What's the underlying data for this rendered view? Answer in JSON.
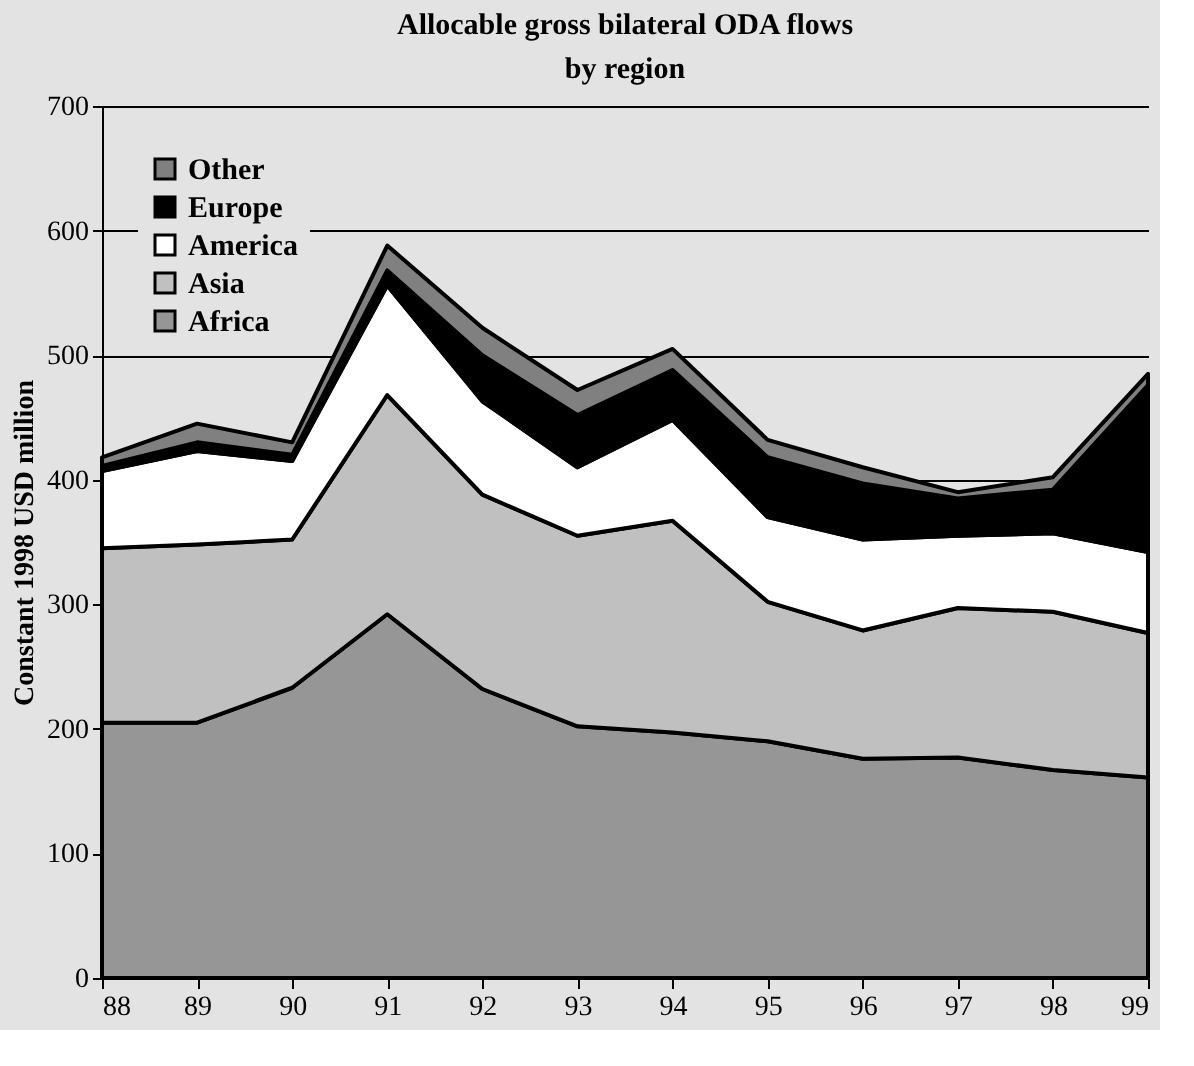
{
  "chart_data": {
    "type": "area",
    "title": "Allocable gross bilateral ODA flows\nby region",
    "ylabel": "Constant 1998 USD million",
    "stacked": true,
    "categories": [
      "88",
      "89",
      "90",
      "91",
      "92",
      "93",
      "94",
      "95",
      "96",
      "97",
      "98",
      "99"
    ],
    "series": [
      {
        "name": "Africa",
        "color": "#969696",
        "values": [
          205,
          205,
          233,
          292,
          232,
          202,
          197,
          190,
          176,
          177,
          167,
          161
        ]
      },
      {
        "name": "Asia",
        "color": "#c0c0c0",
        "values": [
          140,
          143,
          119,
          176,
          156,
          153,
          170,
          112,
          103,
          120,
          127,
          116
        ]
      },
      {
        "name": "America",
        "color": "#ffffff",
        "values": [
          62,
          75,
          63,
          88,
          75,
          55,
          81,
          68,
          73,
          58,
          63,
          65
        ]
      },
      {
        "name": "Europe",
        "color": "#000000",
        "values": [
          4,
          7,
          5,
          12,
          37,
          42,
          40,
          48,
          45,
          30,
          35,
          134
        ]
      },
      {
        "name": "Other",
        "color": "#808080",
        "values": [
          7,
          15,
          10,
          20,
          22,
          20,
          17,
          14,
          13,
          5,
          10,
          9
        ]
      }
    ],
    "ylim": [
      0,
      700
    ],
    "yticks": [
      0,
      100,
      200,
      300,
      400,
      500,
      600,
      700
    ],
    "grid": "y",
    "legend": "top left"
  }
}
